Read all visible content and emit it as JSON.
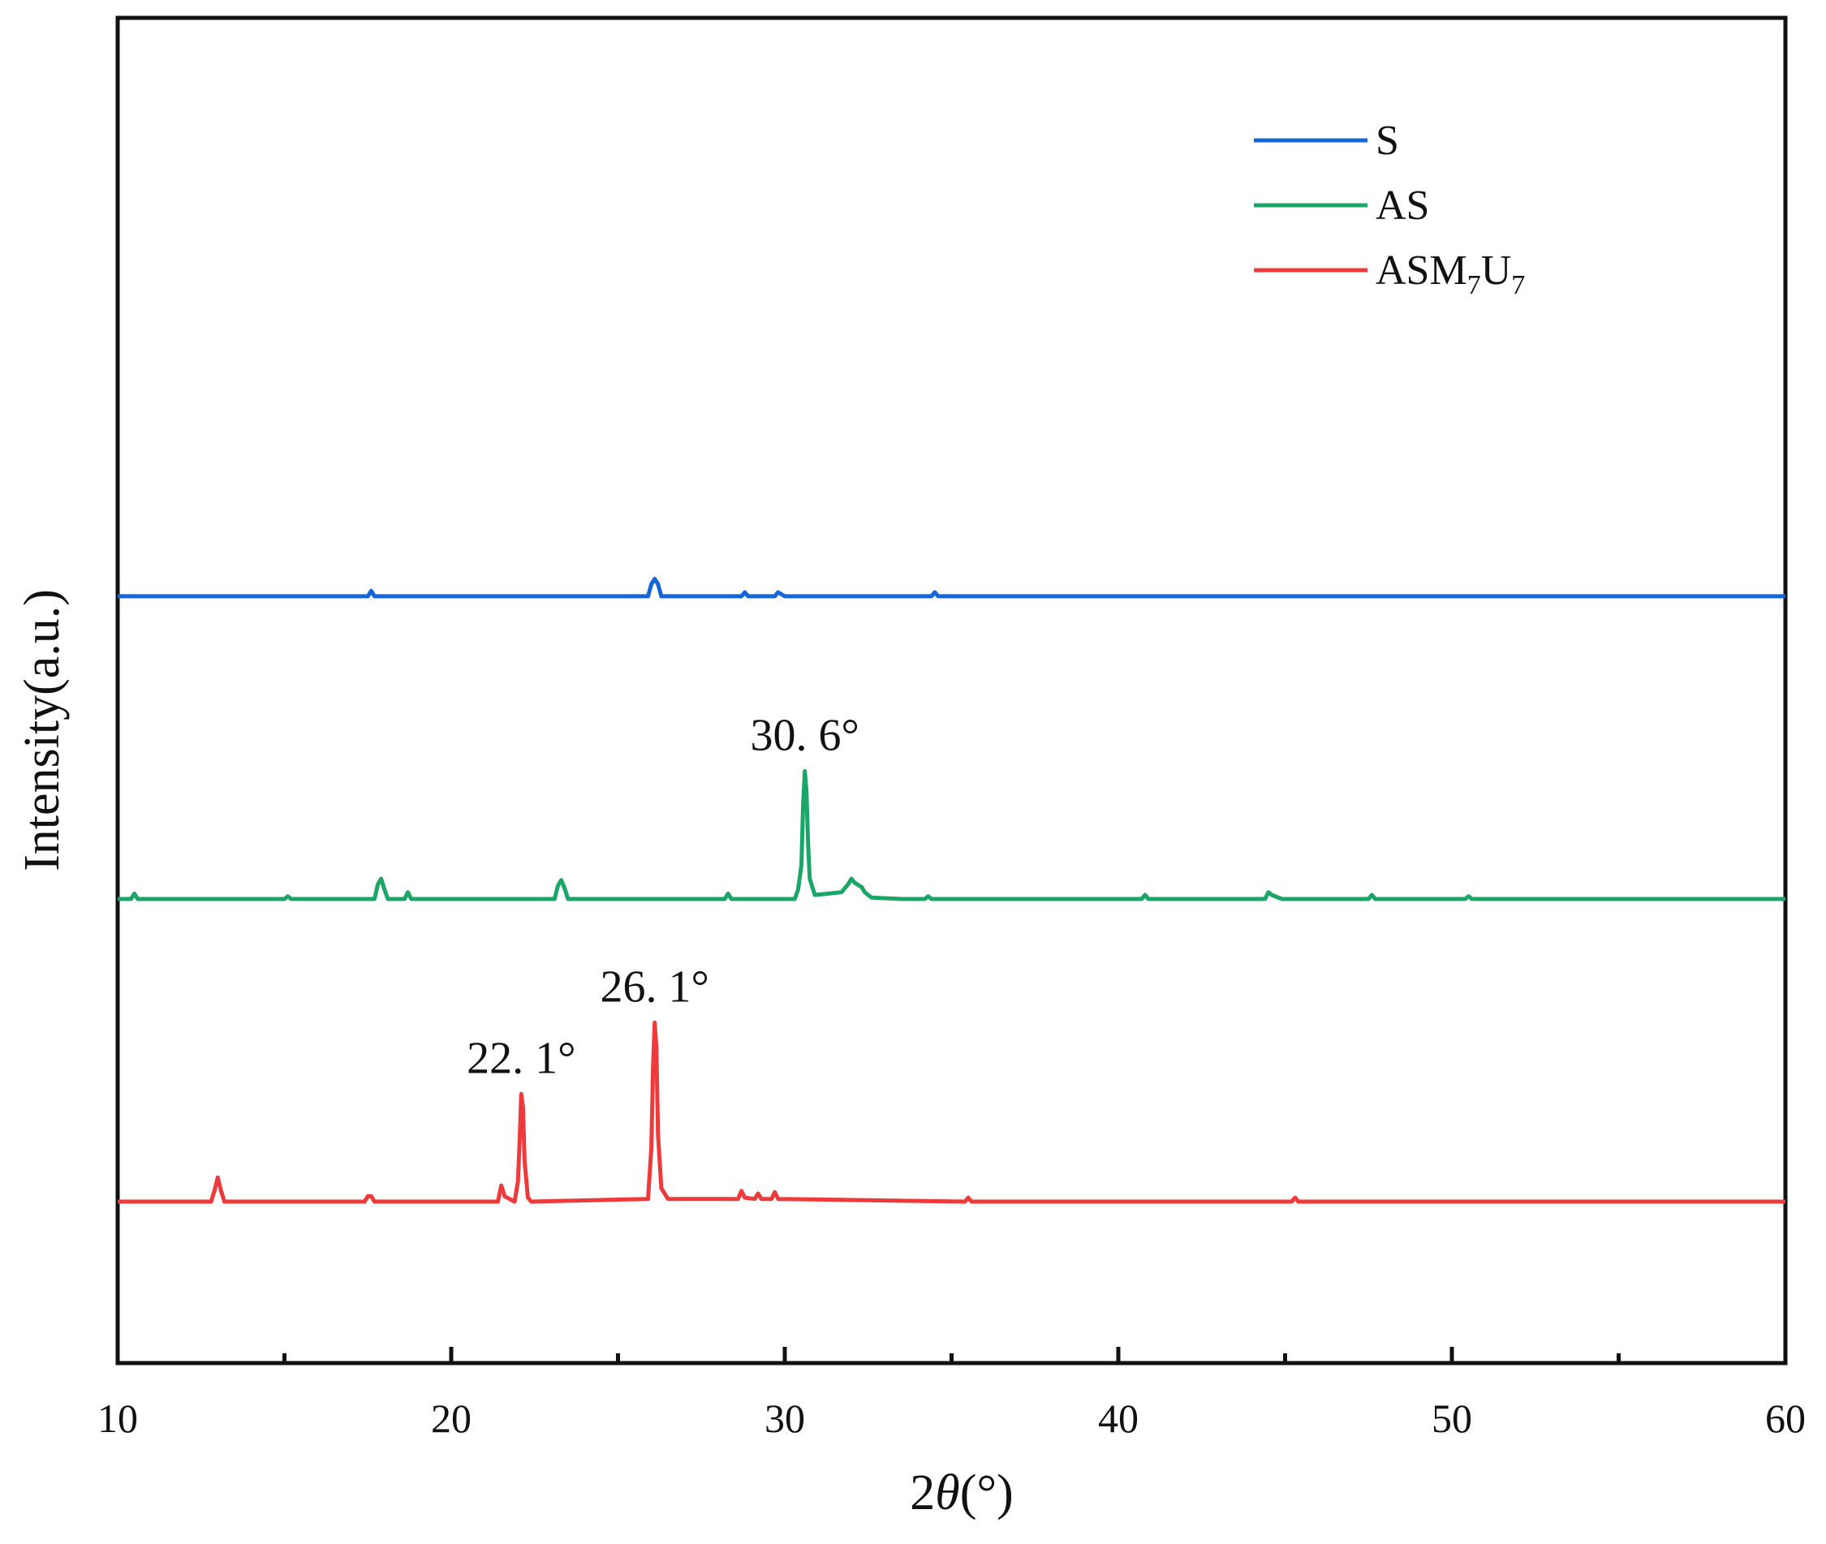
{
  "chart_data": {
    "type": "line",
    "title": "",
    "xlabel_prefix": "2",
    "xlabel_theta": "θ",
    "xlabel_suffix": "(°)",
    "ylabel": "Intensity(a.u.)",
    "xlim": [
      10,
      60
    ],
    "ylim": [
      0,
      100
    ],
    "x_major_ticks": [
      10,
      20,
      30,
      40,
      50,
      60
    ],
    "x_minor_ticks": [
      15,
      25,
      35,
      45,
      55
    ],
    "x_tick_labels": [
      "10",
      "20",
      "30",
      "40",
      "50",
      "60"
    ],
    "grid": false,
    "legend_position": "top-right",
    "series": [
      {
        "name": "S",
        "legend_parts": [
          "S"
        ],
        "color": "#1565d8",
        "baseline": 57,
        "points": [
          [
            10,
            57
          ],
          [
            14.5,
            57
          ],
          [
            17.5,
            57
          ],
          [
            17.6,
            57.4
          ],
          [
            17.7,
            57
          ],
          [
            25.9,
            57
          ],
          [
            26.0,
            57.9
          ],
          [
            26.1,
            58.3
          ],
          [
            26.2,
            57.9
          ],
          [
            26.3,
            57
          ],
          [
            28.7,
            57
          ],
          [
            28.8,
            57.3
          ],
          [
            28.9,
            57
          ],
          [
            29.7,
            57
          ],
          [
            29.8,
            57.3
          ],
          [
            30.0,
            57
          ],
          [
            34.4,
            57
          ],
          [
            34.5,
            57.3
          ],
          [
            34.6,
            57
          ],
          [
            60,
            57
          ]
        ]
      },
      {
        "name": "AS",
        "legend_parts": [
          "AS"
        ],
        "color": "#1aa667",
        "baseline": 34.5,
        "points": [
          [
            10,
            34.5
          ],
          [
            10.4,
            34.5
          ],
          [
            10.5,
            34.9
          ],
          [
            10.6,
            34.5
          ],
          [
            15.0,
            34.5
          ],
          [
            15.1,
            34.7
          ],
          [
            15.2,
            34.5
          ],
          [
            17.7,
            34.5
          ],
          [
            17.8,
            35.6
          ],
          [
            17.9,
            36.0
          ],
          [
            18.0,
            35.2
          ],
          [
            18.1,
            34.5
          ],
          [
            18.6,
            34.5
          ],
          [
            18.7,
            35.0
          ],
          [
            18.8,
            34.5
          ],
          [
            23.1,
            34.5
          ],
          [
            23.2,
            35.5
          ],
          [
            23.3,
            35.9
          ],
          [
            23.4,
            35.3
          ],
          [
            23.5,
            34.5
          ],
          [
            28.2,
            34.5
          ],
          [
            28.3,
            34.9
          ],
          [
            28.4,
            34.5
          ],
          [
            30.3,
            34.5
          ],
          [
            30.4,
            35.2
          ],
          [
            30.5,
            37.0
          ],
          [
            30.55,
            41.5
          ],
          [
            30.6,
            44.0
          ],
          [
            30.65,
            42.5
          ],
          [
            30.7,
            38.5
          ],
          [
            30.75,
            36.0
          ],
          [
            30.9,
            34.8
          ],
          [
            31.3,
            34.9
          ],
          [
            31.7,
            35.0
          ],
          [
            31.9,
            35.6
          ],
          [
            32.0,
            36.0
          ],
          [
            32.1,
            35.7
          ],
          [
            32.3,
            35.4
          ],
          [
            32.4,
            35.0
          ],
          [
            32.6,
            34.6
          ],
          [
            33.5,
            34.5
          ],
          [
            34.2,
            34.5
          ],
          [
            34.3,
            34.7
          ],
          [
            34.4,
            34.5
          ],
          [
            40.7,
            34.5
          ],
          [
            40.8,
            34.8
          ],
          [
            40.9,
            34.5
          ],
          [
            44.4,
            34.5
          ],
          [
            44.5,
            35.0
          ],
          [
            44.6,
            34.8
          ],
          [
            44.9,
            34.5
          ],
          [
            47.5,
            34.5
          ],
          [
            47.6,
            34.8
          ],
          [
            47.7,
            34.5
          ],
          [
            50.4,
            34.5
          ],
          [
            50.5,
            34.7
          ],
          [
            50.6,
            34.5
          ],
          [
            60,
            34.5
          ]
        ]
      },
      {
        "name": "ASM7U7",
        "legend_parts": [
          "ASM",
          "7",
          "U",
          "7"
        ],
        "color": "#ee3a3a",
        "baseline": 12,
        "points": [
          [
            10,
            12
          ],
          [
            12.8,
            12
          ],
          [
            12.9,
            12.8
          ],
          [
            13.0,
            13.8
          ],
          [
            13.1,
            12.8
          ],
          [
            13.2,
            12
          ],
          [
            17.4,
            12
          ],
          [
            17.5,
            12.4
          ],
          [
            17.6,
            12.4
          ],
          [
            17.7,
            12
          ],
          [
            21.4,
            12
          ],
          [
            21.5,
            13.2
          ],
          [
            21.6,
            12.4
          ],
          [
            21.9,
            12
          ],
          [
            22.0,
            13.5
          ],
          [
            22.05,
            16.5
          ],
          [
            22.1,
            20.0
          ],
          [
            22.15,
            19.0
          ],
          [
            22.2,
            15.0
          ],
          [
            22.3,
            12.3
          ],
          [
            22.4,
            12
          ],
          [
            25.9,
            12.2
          ],
          [
            26.0,
            16.0
          ],
          [
            26.05,
            22.0
          ],
          [
            26.1,
            25.3
          ],
          [
            26.15,
            23.5
          ],
          [
            26.2,
            17.0
          ],
          [
            26.3,
            13.0
          ],
          [
            26.5,
            12.2
          ],
          [
            28.6,
            12.2
          ],
          [
            28.7,
            12.8
          ],
          [
            28.8,
            12.3
          ],
          [
            29.1,
            12.2
          ],
          [
            29.2,
            12.6
          ],
          [
            29.3,
            12.2
          ],
          [
            29.6,
            12.2
          ],
          [
            29.7,
            12.7
          ],
          [
            29.8,
            12.2
          ],
          [
            35.4,
            12
          ],
          [
            35.5,
            12.3
          ],
          [
            35.6,
            12
          ],
          [
            45.2,
            12
          ],
          [
            45.3,
            12.3
          ],
          [
            45.4,
            12
          ],
          [
            60,
            12
          ]
        ]
      }
    ],
    "annotations": [
      {
        "text": "30. 6°",
        "x": 30.6,
        "y": 44.0,
        "series": "AS"
      },
      {
        "text": "26. 1°",
        "x": 26.1,
        "y": 25.3,
        "series": "ASM7U7"
      },
      {
        "text": "22. 1°",
        "x": 22.1,
        "y": 20.0,
        "series": "ASM7U7"
      }
    ]
  }
}
